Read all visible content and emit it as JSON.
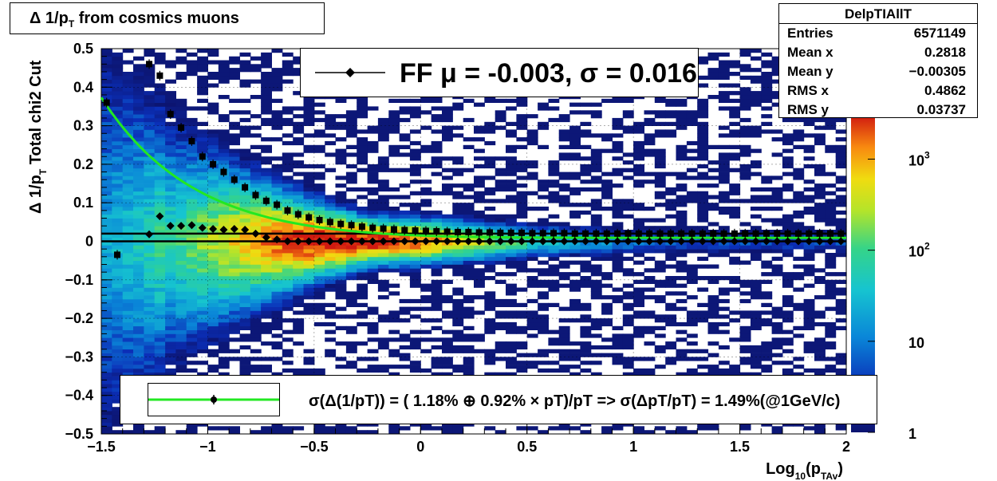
{
  "chart_data": {
    "type": "heatmap",
    "title": "Δ 1/p_T from cosmics muons",
    "title_parts": {
      "main": "Δ 1/p",
      "sub": "T",
      "rest": " from cosmics muons"
    },
    "xlabel": "Log10(pTAv)",
    "xlabel_parts": {
      "a": "Log",
      "sub1": "10",
      "b": "(p",
      "sub2": "TAv",
      "c": ")"
    },
    "ylabel": "Δ 1/p_T   Total chi2 Cut",
    "ylabel_parts": {
      "main": "Δ 1/p",
      "sub": "T",
      "rest": "   Total chi2 Cut"
    },
    "xlim": [
      -1.5,
      2.0
    ],
    "ylim": [
      -0.5,
      0.5
    ],
    "x_ticks": [
      "−1.5",
      "−1",
      "−0.5",
      "0",
      "0.5",
      "1",
      "1.5",
      "2"
    ],
    "x_tick_values": [
      -1.5,
      -1,
      -0.5,
      0,
      0.5,
      1,
      1.5,
      2
    ],
    "y_ticks": [
      "−0.5",
      "−0.4",
      "−0.3",
      "−0.2",
      "−0.1",
      "0",
      "0.1",
      "0.2",
      "0.3",
      "0.4",
      "0.5"
    ],
    "y_tick_values": [
      -0.5,
      -0.4,
      -0.3,
      -0.2,
      -0.1,
      0,
      0.1,
      0.2,
      0.3,
      0.4,
      0.5
    ],
    "grid": true,
    "colorbar": {
      "scale": "log",
      "min": 1,
      "max": 3000,
      "labels": [
        "1",
        "10",
        "10",
        "10"
      ],
      "exponents": [
        "",
        "",
        "2",
        "3"
      ],
      "label_values": [
        1,
        10,
        100,
        1000
      ]
    },
    "stats": {
      "name": "DelpTIAllT",
      "rows": [
        {
          "key": "Entries",
          "value": "6571149"
        },
        {
          "key": "Mean x",
          "value": "0.2818"
        },
        {
          "key": "Mean y",
          "value": "−0.00305"
        },
        {
          "key": "RMS x",
          "value": "0.4862"
        },
        {
          "key": "RMS y",
          "value": "0.03737"
        }
      ]
    },
    "fit_label": "FF μ = -0.003, σ =   0.016",
    "legend_text": "σ(Δ(1/pT)) = ( 1.18% ⊕  0.92% × pT)/pT => σ(ΔpT/pT) =  1.49%(@1GeV/c)",
    "series": [
      {
        "name": "sigma",
        "x": [
          -1.475,
          -1.425,
          -1.275,
          -1.225,
          -1.175,
          -1.125,
          -1.075,
          -1.025,
          -0.975,
          -0.925,
          -0.875,
          -0.825,
          -0.775,
          -0.725,
          -0.675,
          -0.625,
          -0.575,
          -0.525,
          -0.475,
          -0.425,
          -0.375,
          -0.325,
          -0.275,
          -0.225,
          -0.175,
          -0.125,
          -0.075,
          -0.025,
          0.025,
          0.075,
          0.125,
          0.175,
          0.225,
          0.275,
          0.325,
          0.375,
          0.425,
          0.475,
          0.525,
          0.575,
          0.625,
          0.675,
          0.725,
          0.775,
          0.825,
          0.875,
          0.925,
          0.975,
          1.025,
          1.075,
          1.125,
          1.175,
          1.225,
          1.275,
          1.325,
          1.375,
          1.425,
          1.475,
          1.525,
          1.575,
          1.625,
          1.675,
          1.725,
          1.775,
          1.825,
          1.875,
          1.925,
          1.975
        ],
        "y": [
          0.36,
          -0.035,
          0.46,
          0.43,
          0.33,
          0.295,
          0.26,
          0.22,
          0.2,
          0.18,
          0.16,
          0.14,
          0.12,
          0.105,
          0.095,
          0.08,
          0.07,
          0.062,
          0.055,
          0.05,
          0.045,
          0.042,
          0.038,
          0.035,
          0.033,
          0.031,
          0.029,
          0.028,
          0.027,
          0.026,
          0.025,
          0.024,
          0.024,
          0.023,
          0.023,
          0.022,
          0.022,
          0.022,
          0.021,
          0.021,
          0.021,
          0.021,
          0.02,
          0.02,
          0.02,
          0.02,
          0.02,
          0.02,
          0.02,
          0.02,
          0.02,
          0.02,
          0.02,
          0.02,
          0.02,
          0.02,
          0.02,
          0.02,
          0.02,
          0.02,
          0.02,
          0.02,
          0.02,
          0.02,
          0.02,
          0.02,
          0.02,
          0.02
        ]
      },
      {
        "name": "mean",
        "x": [
          -1.275,
          -1.225,
          -1.175,
          -1.125,
          -1.075,
          -1.025,
          -0.975,
          -0.925,
          -0.875,
          -0.825,
          -0.775,
          -0.725,
          -0.675,
          -0.625,
          -0.575,
          -0.525,
          -0.475,
          -0.425,
          -0.375,
          -0.325,
          -0.275,
          -0.225,
          -0.175,
          -0.125,
          -0.075,
          -0.025,
          0.025,
          0.075,
          0.125,
          0.175,
          0.225,
          0.275,
          0.325,
          0.375,
          0.425,
          0.475,
          0.525,
          0.575,
          0.625,
          0.675,
          0.725,
          0.775,
          0.825,
          0.875,
          0.925,
          0.975,
          1.025,
          1.075,
          1.125,
          1.175,
          1.225,
          1.275,
          1.325,
          1.375,
          1.425,
          1.475,
          1.525,
          1.575,
          1.625,
          1.675,
          1.725,
          1.775,
          1.825,
          1.875,
          1.925,
          1.975
        ],
        "y": [
          0.018,
          0.065,
          0.04,
          0.04,
          0.042,
          0.035,
          0.032,
          0.03,
          0.032,
          0.03,
          0.02,
          0.01,
          0.005,
          0.0,
          0.0,
          0.0,
          0.0,
          0.0,
          0.0,
          0.0,
          0.0,
          0.0,
          0.0,
          0.0,
          0.0,
          0.0,
          0.0,
          0.0,
          0.0,
          0.0,
          0.0,
          0.0,
          0.0,
          0.0,
          0.0,
          0.0,
          0.0,
          0.0,
          0.0,
          0.0,
          0.0,
          0.0,
          0.0,
          0.0,
          0.0,
          0.0,
          0.0,
          0.0,
          0.0,
          0.0,
          0.0,
          0.0,
          0.0,
          0.0,
          0.0,
          0.0,
          0.0,
          0.0,
          0.0,
          0.0,
          0.0,
          0.0,
          0.0,
          0.0,
          0.0,
          0.0
        ]
      }
    ],
    "fit_curve": {
      "function": "sqrt((0.0118)^2 + (0.0092*pT)^2)/pT",
      "color": "#22e822"
    },
    "reference_lines_y": [
      0.02,
      0.0
    ]
  }
}
